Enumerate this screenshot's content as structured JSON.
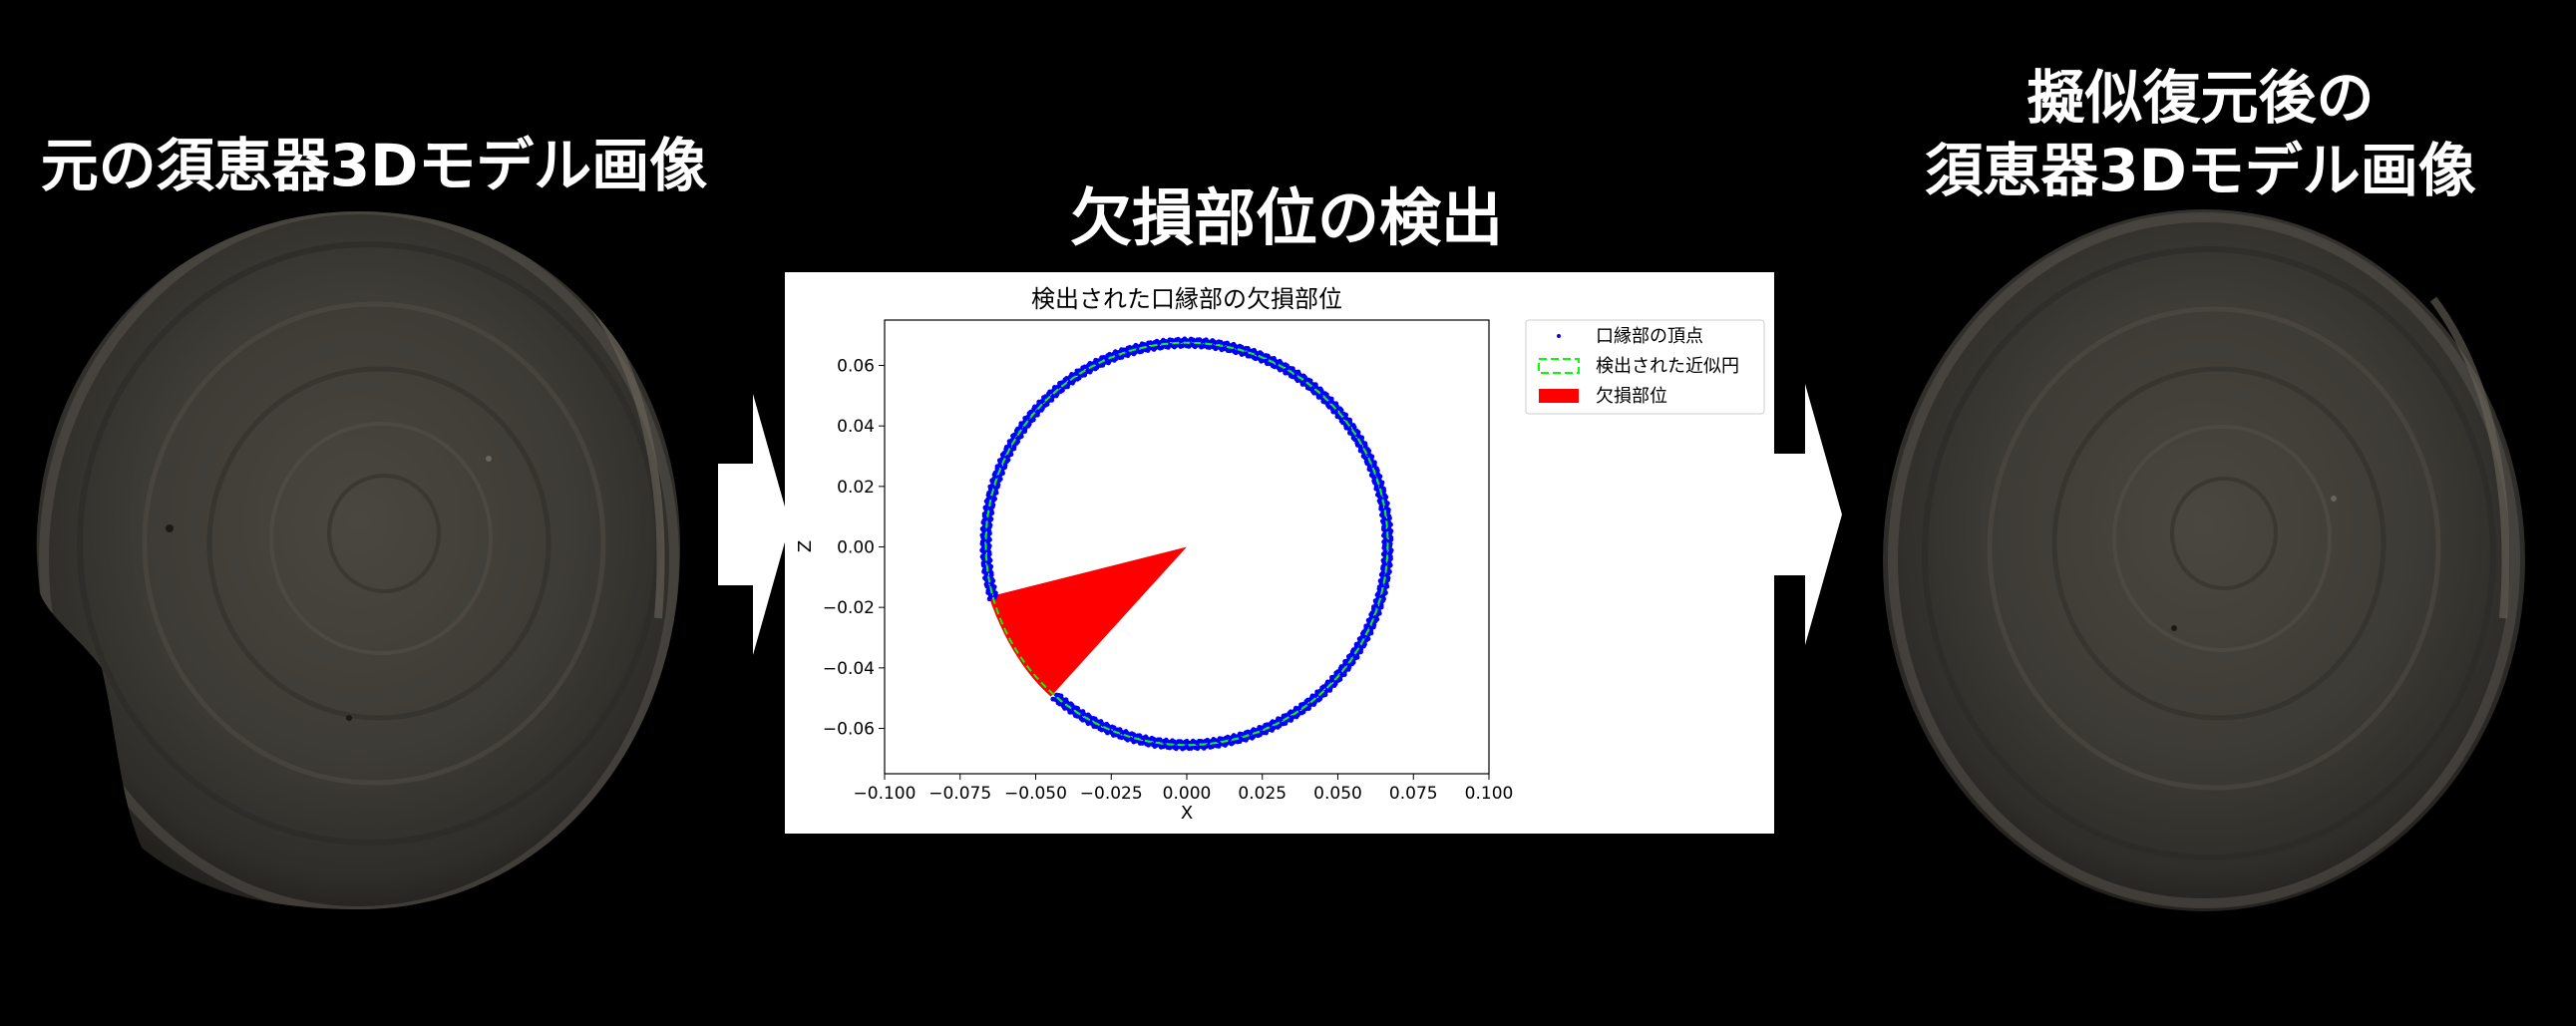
{
  "left_panel": {
    "title": "元の須恵器3Dモデル画像"
  },
  "center_panel": {
    "title": "欠損部位の検出"
  },
  "right_panel": {
    "title_line1": "擬似復元後の",
    "title_line2": "須恵器3Dモデル画像"
  },
  "chart_data": {
    "type": "scatter",
    "title": "検出された口縁部の欠損部位",
    "xlabel": "X",
    "ylabel": "Z",
    "xlim": [
      -0.1,
      0.1
    ],
    "ylim": [
      -0.075,
      0.075
    ],
    "xticks": [
      "−0.100",
      "−0.075",
      "−0.050",
      "−0.025",
      "0.000",
      "0.025",
      "0.050",
      "0.075",
      "0.100"
    ],
    "xtick_values": [
      -0.1,
      -0.075,
      -0.05,
      -0.025,
      0.0,
      0.025,
      0.05,
      0.075,
      0.1
    ],
    "yticks": [
      "0.06",
      "0.04",
      "0.02",
      "0.00",
      "−0.02",
      "−0.04",
      "−0.06"
    ],
    "ytick_values": [
      0.06,
      0.04,
      0.02,
      0.0,
      -0.02,
      -0.04,
      -0.06
    ],
    "series": [
      {
        "name": "口縁部の頂点",
        "kind": "scatter",
        "color": "#0000ff",
        "center": [
          0.0,
          0.001
        ],
        "radius": 0.0665,
        "gap_from_deg": 196,
        "gap_to_deg": 229
      },
      {
        "name": "検出された近似円",
        "kind": "circle",
        "style": "dashed",
        "color": "#00ff00",
        "center": [
          0.0,
          0.001
        ],
        "radius": 0.0665
      },
      {
        "name": "欠損部位",
        "kind": "wedge",
        "color": "#ff0000",
        "center": [
          0.0,
          0.0
        ],
        "vertices": [
          [
            -0.0655,
            -0.0165
          ],
          [
            -0.045,
            -0.0495
          ]
        ]
      }
    ],
    "legend_position": "upper right outside"
  },
  "colors": {
    "background": "#000000",
    "panel": "#ffffff",
    "arrow": "#ffffff"
  }
}
